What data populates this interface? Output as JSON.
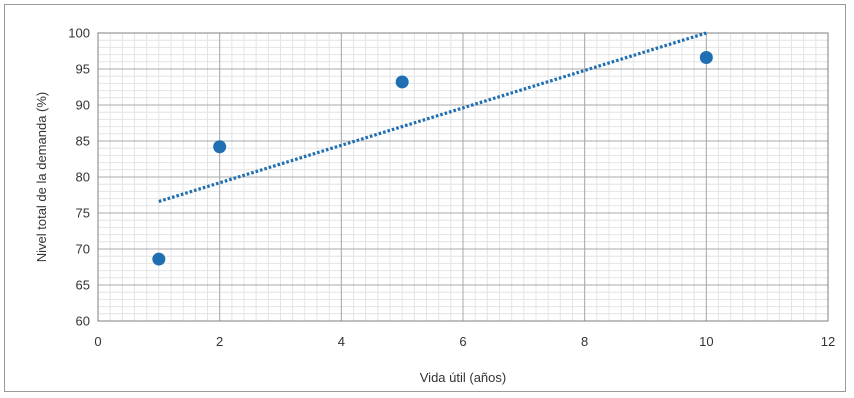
{
  "chart_data": {
    "type": "scatter",
    "title": "",
    "xlabel": "Vida útil (años)",
    "ylabel": "Nivel total de la demanda (%)",
    "xlim": [
      0,
      12
    ],
    "ylim": [
      60,
      100
    ],
    "xticks": [
      0,
      2,
      4,
      6,
      8,
      10,
      12
    ],
    "yticks": [
      60,
      65,
      70,
      75,
      80,
      85,
      90,
      95,
      100
    ],
    "grid": true,
    "legend": "none",
    "series": [
      {
        "points": [
          {
            "x": 1,
            "y": 68.6
          },
          {
            "x": 2,
            "y": 84.2
          },
          {
            "x": 5,
            "y": 93.2
          },
          {
            "x": 10,
            "y": 96.6
          }
        ],
        "color": "#1f6fb2"
      }
    ],
    "trendline": {
      "type": "linear",
      "from": {
        "x": 1,
        "y": 76.6
      },
      "to": {
        "x": 10,
        "y": 100
      },
      "style": "dotted",
      "color": "#1f6fb2"
    }
  }
}
